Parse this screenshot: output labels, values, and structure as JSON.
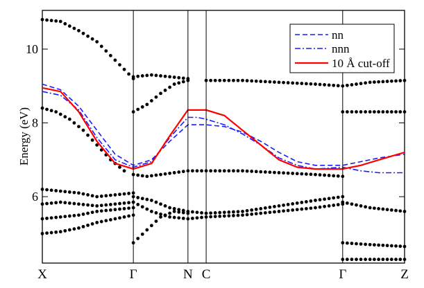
{
  "chart_data": {
    "type": "line",
    "title": "",
    "xlabel": "",
    "ylabel": "Energy (eV)",
    "ylim": [
      4.2,
      11.05
    ],
    "yticks": [
      6,
      8,
      10
    ],
    "kpoints": [
      {
        "label": "X",
        "x": 0.0
      },
      {
        "label": "Γ",
        "x": 1.0
      },
      {
        "label": "N",
        "x": 1.6
      },
      {
        "label": "C",
        "x": 1.8
      },
      {
        "label": "Γ",
        "x": 3.3
      },
      {
        "label": "Z",
        "x": 3.98
      }
    ],
    "xlim": [
      0.0,
      3.98
    ],
    "legend": {
      "position": "top-right",
      "entries": [
        {
          "label": "nn",
          "style": "dashed",
          "color": "#1a1aff"
        },
        {
          "label": "nnn",
          "style": "dashdot",
          "color": "#1a1aff"
        },
        {
          "label": "10 Å cut-off",
          "style": "solid",
          "color": "#ff0000"
        }
      ]
    },
    "series": [
      {
        "name": "nn",
        "color": "#1a1aff",
        "style": "dashed",
        "x": [
          0.0,
          0.2,
          0.4,
          0.6,
          0.8,
          1.0,
          1.2,
          1.4,
          1.6,
          1.7,
          1.8,
          2.0,
          2.2,
          2.4,
          2.6,
          2.8,
          3.0,
          3.3,
          3.5,
          3.7,
          3.98
        ],
        "y": [
          9.05,
          8.9,
          8.45,
          7.8,
          7.15,
          6.85,
          7.0,
          7.5,
          7.95,
          7.95,
          7.95,
          7.9,
          7.75,
          7.5,
          7.2,
          6.95,
          6.85,
          6.85,
          6.95,
          7.05,
          7.15
        ]
      },
      {
        "name": "nnn",
        "color": "#1a1aff",
        "style": "dashdot",
        "x": [
          0.0,
          0.2,
          0.4,
          0.6,
          0.8,
          1.0,
          1.2,
          1.4,
          1.6,
          1.7,
          1.8,
          2.0,
          2.2,
          2.4,
          2.6,
          2.8,
          3.0,
          3.3,
          3.5,
          3.7,
          3.98
        ],
        "y": [
          8.85,
          8.75,
          8.35,
          7.6,
          7.0,
          6.8,
          6.95,
          7.6,
          8.15,
          8.15,
          8.1,
          7.95,
          7.7,
          7.4,
          7.05,
          6.85,
          6.75,
          6.8,
          6.7,
          6.65,
          6.65
        ]
      },
      {
        "name": "10 Å cut-off",
        "color": "#ff0000",
        "style": "solid",
        "x": [
          0.0,
          0.2,
          0.4,
          0.6,
          0.8,
          1.0,
          1.2,
          1.4,
          1.6,
          1.7,
          1.8,
          2.0,
          2.2,
          2.4,
          2.6,
          2.8,
          3.0,
          3.3,
          3.5,
          3.7,
          3.98
        ],
        "y": [
          8.95,
          8.85,
          8.3,
          7.5,
          6.9,
          6.75,
          6.9,
          7.65,
          8.35,
          8.35,
          8.35,
          8.2,
          7.8,
          7.4,
          7.0,
          6.8,
          6.75,
          6.75,
          6.85,
          7.0,
          7.2
        ]
      }
    ],
    "scatter_bands": [
      {
        "x": [
          0.0,
          0.2,
          0.4,
          0.6,
          0.8,
          1.0
        ],
        "y": [
          10.8,
          10.75,
          10.5,
          10.2,
          9.7,
          9.2
        ]
      },
      {
        "x": [
          0.0,
          0.15,
          0.3,
          0.45,
          0.6,
          0.75,
          0.9
        ],
        "y": [
          8.4,
          8.3,
          8.1,
          7.8,
          7.4,
          7.0,
          6.7
        ]
      },
      {
        "x": [
          0.0,
          0.2,
          0.4,
          0.6,
          0.8,
          1.0
        ],
        "y": [
          6.2,
          6.15,
          6.1,
          6.0,
          6.05,
          6.1
        ]
      },
      {
        "x": [
          0.0,
          0.2,
          0.4,
          0.6,
          0.8,
          1.0
        ],
        "y": [
          5.8,
          5.85,
          5.8,
          5.75,
          5.8,
          5.85
        ]
      },
      {
        "x": [
          0.0,
          0.2,
          0.4,
          0.6,
          0.8,
          1.0
        ],
        "y": [
          5.4,
          5.45,
          5.5,
          5.6,
          5.65,
          5.7
        ]
      },
      {
        "x": [
          0.0,
          0.2,
          0.4,
          0.6,
          0.8,
          1.0
        ],
        "y": [
          5.0,
          5.05,
          5.15,
          5.3,
          5.4,
          5.5
        ]
      },
      {
        "x": [
          1.0,
          1.2,
          1.4,
          1.6
        ],
        "y": [
          9.25,
          9.3,
          9.25,
          9.2
        ]
      },
      {
        "x": [
          1.0,
          1.15,
          1.3,
          1.45,
          1.6
        ],
        "y": [
          8.3,
          8.5,
          8.8,
          9.05,
          9.15
        ]
      },
      {
        "x": [
          1.0,
          1.15,
          1.3,
          1.45,
          1.6,
          1.8,
          2.2,
          2.6,
          3.0,
          3.3
        ],
        "y": [
          6.6,
          6.55,
          6.6,
          6.65,
          6.7,
          6.7,
          6.7,
          6.65,
          6.6,
          6.55
        ]
      },
      {
        "x": [
          1.0,
          1.2,
          1.4,
          1.6,
          1.8,
          2.2,
          2.6,
          3.0,
          3.3
        ],
        "y": [
          6.0,
          5.9,
          5.7,
          5.6,
          5.55,
          5.6,
          5.75,
          5.9,
          6.0
        ]
      },
      {
        "x": [
          1.0,
          1.2,
          1.4,
          1.6,
          1.8,
          2.2,
          2.6,
          3.0,
          3.3
        ],
        "y": [
          5.85,
          5.6,
          5.45,
          5.4,
          5.45,
          5.5,
          5.6,
          5.7,
          5.8
        ]
      },
      {
        "x": [
          1.0,
          1.15,
          1.3,
          1.45,
          1.6
        ],
        "y": [
          4.75,
          5.1,
          5.45,
          5.6,
          5.55
        ]
      },
      {
        "x": [
          1.8,
          2.2,
          2.6,
          3.0,
          3.3,
          3.6,
          3.98
        ],
        "y": [
          9.15,
          9.15,
          9.1,
          9.05,
          9.0,
          9.1,
          9.15
        ]
      },
      {
        "x": [
          3.3,
          3.6,
          3.98
        ],
        "y": [
          8.3,
          8.3,
          8.3
        ]
      },
      {
        "x": [
          3.3,
          3.6,
          3.98
        ],
        "y": [
          5.85,
          5.7,
          5.6
        ]
      },
      {
        "x": [
          3.3,
          3.6,
          3.98
        ],
        "y": [
          4.75,
          4.7,
          4.65
        ]
      },
      {
        "x": [
          3.3,
          3.6,
          3.98
        ],
        "y": [
          4.3,
          4.3,
          4.3
        ]
      }
    ]
  }
}
